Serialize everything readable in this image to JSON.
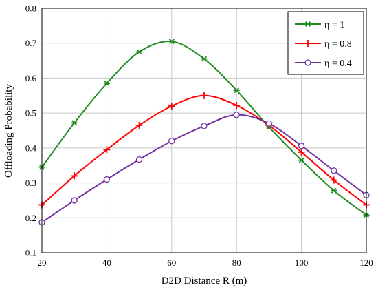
{
  "chart_data": {
    "type": "line",
    "title": "",
    "xlabel": "D2D Distance R (m)",
    "ylabel": "Offloading Probability",
    "xlim": [
      20,
      120
    ],
    "ylim": [
      0.1,
      0.8
    ],
    "xticks": [
      20,
      40,
      60,
      80,
      100,
      120
    ],
    "yticks": [
      0.1,
      0.2,
      0.3,
      0.4,
      0.5,
      0.6,
      0.7,
      0.8
    ],
    "xtick_labels": [
      "20",
      "40",
      "60",
      "80",
      "100",
      "120"
    ],
    "ytick_labels": [
      "0.1",
      "0.2",
      "0.3",
      "0.4",
      "0.5",
      "0.6",
      "0.7",
      "0.8"
    ],
    "grid": true,
    "legend_position": "top-right",
    "x": [
      20,
      30,
      40,
      50,
      60,
      70,
      80,
      90,
      100,
      110,
      120
    ],
    "series": [
      {
        "name": "η = 1",
        "color": "#228b22",
        "marker": "star",
        "values": [
          0.345,
          0.472,
          0.585,
          0.675,
          0.705,
          0.655,
          0.565,
          0.46,
          0.365,
          0.278,
          0.208
        ]
      },
      {
        "name": "η =  0.8",
        "color": "#ff0000",
        "marker": "plus",
        "values": [
          0.237,
          0.32,
          0.395,
          0.465,
          0.52,
          0.55,
          0.522,
          0.465,
          0.388,
          0.308,
          0.237
        ]
      },
      {
        "name": "η = 0.4",
        "color": "#7030a0",
        "marker": "circle",
        "values": [
          0.187,
          0.25,
          0.31,
          0.367,
          0.42,
          0.463,
          0.495,
          0.47,
          0.406,
          0.335,
          0.265
        ]
      }
    ]
  }
}
